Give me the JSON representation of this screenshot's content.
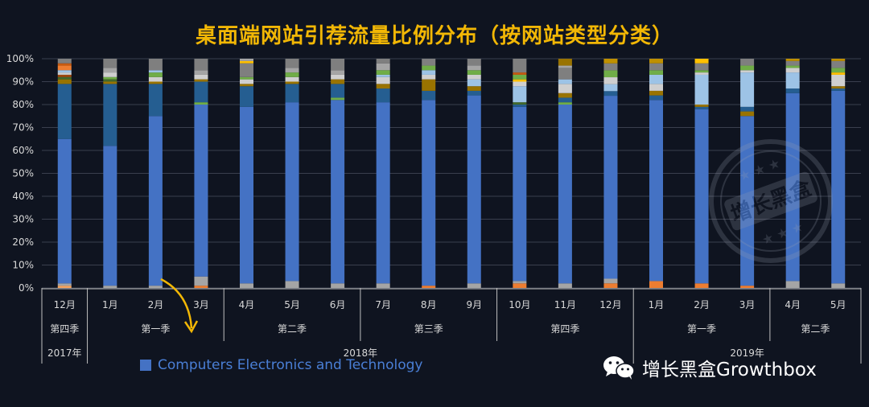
{
  "title": "桌面端网站引荐流量比例分布（按网站类型分类）",
  "legend_label": "Computers Electronics and Technology",
  "brand": {
    "text": "增长黑盒Growthbox",
    "stamp_text": "增长黑盒"
  },
  "colors": {
    "primary": "#4472c4",
    "title": "#f2b705",
    "arrow": "#f2b705",
    "background": "#0f1420"
  },
  "chart_data": {
    "type": "bar",
    "stacked": true,
    "normalized_percent": true,
    "title": "桌面端网站引荐流量比例分布（按网站类型分类）",
    "ylim": [
      0,
      100
    ],
    "yticks": [
      "0%",
      "10%",
      "20%",
      "30%",
      "40%",
      "50%",
      "60%",
      "70%",
      "80%",
      "90%",
      "100%"
    ],
    "grid": true,
    "legend_position": "bottom-left",
    "categories": [
      "12月",
      "1月",
      "2月",
      "3月",
      "4月",
      "5月",
      "6月",
      "7月",
      "8月",
      "9月",
      "10月",
      "11月",
      "12月",
      "1月",
      "2月",
      "3月",
      "4月",
      "5月"
    ],
    "x_groups_season": [
      {
        "label": "第四季",
        "span": 1
      },
      {
        "label": "第一季",
        "span": 3
      },
      {
        "label": "第二季",
        "span": 3
      },
      {
        "label": "第三季",
        "span": 3
      },
      {
        "label": "第四季",
        "span": 3
      },
      {
        "label": "第一季",
        "span": 3
      },
      {
        "label": "第二季",
        "span": 2
      }
    ],
    "x_groups_year": [
      {
        "label": "2017年",
        "span": 1
      },
      {
        "label": "2018年",
        "span": 12
      },
      {
        "label": "2019年",
        "span": 5
      }
    ],
    "highlight_series": "Computers Electronics and Technology",
    "stacks": [
      [
        {
          "v": 1,
          "c": "#f4a460"
        },
        {
          "v": 1,
          "c": "#a5a5a5"
        },
        {
          "v": 63,
          "c": "#4472c4"
        },
        {
          "v": 24,
          "c": "#255e91"
        },
        {
          "v": 2,
          "c": "#997300"
        },
        {
          "v": 1,
          "c": "#43682b"
        },
        {
          "v": 1,
          "c": "#9e480e"
        },
        {
          "v": 1,
          "c": "#cfcfcf"
        },
        {
          "v": 1,
          "c": "#9dc3e6"
        },
        {
          "v": 2,
          "c": "#ed7d31"
        },
        {
          "v": 1,
          "c": "#c55a11"
        },
        {
          "v": 2,
          "c": "#7f7f7f"
        }
      ],
      [
        {
          "v": 1,
          "c": "#a5a5a5"
        },
        {
          "v": 61,
          "c": "#4472c4"
        },
        {
          "v": 27,
          "c": "#255e91"
        },
        {
          "v": 1,
          "c": "#997300"
        },
        {
          "v": 1,
          "c": "#43682b"
        },
        {
          "v": 1,
          "c": "#70ad47"
        },
        {
          "v": 2,
          "c": "#cfcfcf"
        },
        {
          "v": 2,
          "c": "#a5a5a5"
        },
        {
          "v": 4,
          "c": "#7f7f7f"
        }
      ],
      [
        {
          "v": 1,
          "c": "#a5a5a5"
        },
        {
          "v": 74,
          "c": "#4472c4"
        },
        {
          "v": 14,
          "c": "#255e91"
        },
        {
          "v": 1,
          "c": "#997300"
        },
        {
          "v": 2,
          "c": "#cfcfcf"
        },
        {
          "v": 2,
          "c": "#70ad47"
        },
        {
          "v": 1,
          "c": "#9dc3e6"
        },
        {
          "v": 5,
          "c": "#7f7f7f"
        }
      ],
      [
        {
          "v": 1,
          "c": "#ed7d31"
        },
        {
          "v": 4,
          "c": "#a5a5a5"
        },
        {
          "v": 75,
          "c": "#4472c4"
        },
        {
          "v": 1,
          "c": "#70ad47"
        },
        {
          "v": 9,
          "c": "#255e91"
        },
        {
          "v": 1,
          "c": "#997300"
        },
        {
          "v": 2,
          "c": "#cfcfcf"
        },
        {
          "v": 2,
          "c": "#a5a5a5"
        },
        {
          "v": 5,
          "c": "#7f7f7f"
        }
      ],
      [
        {
          "v": 2,
          "c": "#a5a5a5"
        },
        {
          "v": 77,
          "c": "#4472c4"
        },
        {
          "v": 9,
          "c": "#255e91"
        },
        {
          "v": 1,
          "c": "#997300"
        },
        {
          "v": 2,
          "c": "#cfcfcf"
        },
        {
          "v": 1,
          "c": "#70ad47"
        },
        {
          "v": 6,
          "c": "#7f7f7f"
        },
        {
          "v": 1,
          "c": "#ffc000"
        },
        {
          "v": 1,
          "c": "#a5a5a5"
        }
      ],
      [
        {
          "v": 3,
          "c": "#a5a5a5"
        },
        {
          "v": 78,
          "c": "#4472c4"
        },
        {
          "v": 8,
          "c": "#255e91"
        },
        {
          "v": 1,
          "c": "#997300"
        },
        {
          "v": 2,
          "c": "#cfcfcf"
        },
        {
          "v": 2,
          "c": "#70ad47"
        },
        {
          "v": 2,
          "c": "#a5a5a5"
        },
        {
          "v": 4,
          "c": "#7f7f7f"
        }
      ],
      [
        {
          "v": 2,
          "c": "#a5a5a5"
        },
        {
          "v": 80,
          "c": "#4472c4"
        },
        {
          "v": 1,
          "c": "#70ad47"
        },
        {
          "v": 6,
          "c": "#255e91"
        },
        {
          "v": 2,
          "c": "#997300"
        },
        {
          "v": 2,
          "c": "#cfcfcf"
        },
        {
          "v": 2,
          "c": "#a5a5a5"
        },
        {
          "v": 5,
          "c": "#7f7f7f"
        }
      ],
      [
        {
          "v": 2,
          "c": "#a5a5a5"
        },
        {
          "v": 79,
          "c": "#4472c4"
        },
        {
          "v": 6,
          "c": "#255e91"
        },
        {
          "v": 2,
          "c": "#997300"
        },
        {
          "v": 3,
          "c": "#cfcfcf"
        },
        {
          "v": 1,
          "c": "#9dc3e6"
        },
        {
          "v": 2,
          "c": "#70ad47"
        },
        {
          "v": 3,
          "c": "#a5a5a5"
        },
        {
          "v": 2,
          "c": "#7f7f7f"
        }
      ],
      [
        {
          "v": 1,
          "c": "#ed7d31"
        },
        {
          "v": 81,
          "c": "#4472c4"
        },
        {
          "v": 4,
          "c": "#255e91"
        },
        {
          "v": 5,
          "c": "#997300"
        },
        {
          "v": 2,
          "c": "#cfcfcf"
        },
        {
          "v": 2,
          "c": "#9dc3e6"
        },
        {
          "v": 2,
          "c": "#70ad47"
        },
        {
          "v": 3,
          "c": "#7f7f7f"
        }
      ],
      [
        {
          "v": 2,
          "c": "#a5a5a5"
        },
        {
          "v": 82,
          "c": "#4472c4"
        },
        {
          "v": 2,
          "c": "#255e91"
        },
        {
          "v": 2,
          "c": "#997300"
        },
        {
          "v": 3,
          "c": "#9dc3e6"
        },
        {
          "v": 2,
          "c": "#cfcfcf"
        },
        {
          "v": 2,
          "c": "#70ad47"
        },
        {
          "v": 2,
          "c": "#a5a5a5"
        },
        {
          "v": 3,
          "c": "#7f7f7f"
        }
      ],
      [
        {
          "v": 2,
          "c": "#ed7d31"
        },
        {
          "v": 1,
          "c": "#a5a5a5"
        },
        {
          "v": 76,
          "c": "#4472c4"
        },
        {
          "v": 1,
          "c": "#255e91"
        },
        {
          "v": 1,
          "c": "#43682b"
        },
        {
          "v": 7,
          "c": "#9dc3e6"
        },
        {
          "v": 2,
          "c": "#cfcfcf"
        },
        {
          "v": 1,
          "c": "#ffc000"
        },
        {
          "v": 2,
          "c": "#70ad47"
        },
        {
          "v": 1,
          "c": "#c55a11"
        },
        {
          "v": 6,
          "c": "#7f7f7f"
        }
      ],
      [
        {
          "v": 2,
          "c": "#a5a5a5"
        },
        {
          "v": 78,
          "c": "#4472c4"
        },
        {
          "v": 1,
          "c": "#70ad47"
        },
        {
          "v": 2,
          "c": "#255e91"
        },
        {
          "v": 2,
          "c": "#997300"
        },
        {
          "v": 4,
          "c": "#cfcfcf"
        },
        {
          "v": 2,
          "c": "#9dc3e6"
        },
        {
          "v": 5,
          "c": "#7f7f7f"
        },
        {
          "v": 1,
          "c": "#a5a5a5"
        },
        {
          "v": 3,
          "c": "#997300"
        }
      ],
      [
        {
          "v": 2,
          "c": "#ed7d31"
        },
        {
          "v": 2,
          "c": "#a5a5a5"
        },
        {
          "v": 79,
          "c": "#4472c4"
        },
        {
          "v": 2,
          "c": "#255e91"
        },
        {
          "v": 3,
          "c": "#9dc3e6"
        },
        {
          "v": 3,
          "c": "#cfcfcf"
        },
        {
          "v": 3,
          "c": "#70ad47"
        },
        {
          "v": 3,
          "c": "#7f7f7f"
        },
        {
          "v": 2,
          "c": "#bf9000"
        }
      ],
      [
        {
          "v": 3,
          "c": "#ed7d31"
        },
        {
          "v": 79,
          "c": "#4472c4"
        },
        {
          "v": 2,
          "c": "#255e91"
        },
        {
          "v": 2,
          "c": "#997300"
        },
        {
          "v": 3,
          "c": "#cfcfcf"
        },
        {
          "v": 4,
          "c": "#9dc3e6"
        },
        {
          "v": 2,
          "c": "#70ad47"
        },
        {
          "v": 3,
          "c": "#7f7f7f"
        },
        {
          "v": 2,
          "c": "#bf9000"
        }
      ],
      [
        {
          "v": 2,
          "c": "#ed7d31"
        },
        {
          "v": 76,
          "c": "#4472c4"
        },
        {
          "v": 1,
          "c": "#255e91"
        },
        {
          "v": 1,
          "c": "#997300"
        },
        {
          "v": 13,
          "c": "#9dc3e6"
        },
        {
          "v": 1,
          "c": "#cfcfcf"
        },
        {
          "v": 1,
          "c": "#70ad47"
        },
        {
          "v": 3,
          "c": "#7f7f7f"
        },
        {
          "v": 2,
          "c": "#ffc000"
        }
      ],
      [
        {
          "v": 1,
          "c": "#ed7d31"
        },
        {
          "v": 74,
          "c": "#4472c4"
        },
        {
          "v": 2,
          "c": "#997300"
        },
        {
          "v": 2,
          "c": "#255e91"
        },
        {
          "v": 15,
          "c": "#9dc3e6"
        },
        {
          "v": 1,
          "c": "#cfcfcf"
        },
        {
          "v": 2,
          "c": "#70ad47"
        },
        {
          "v": 3,
          "c": "#7f7f7f"
        }
      ],
      [
        {
          "v": 3,
          "c": "#a5a5a5"
        },
        {
          "v": 82,
          "c": "#4472c4"
        },
        {
          "v": 2,
          "c": "#255e91"
        },
        {
          "v": 7,
          "c": "#9dc3e6"
        },
        {
          "v": 2,
          "c": "#cfcfcf"
        },
        {
          "v": 1,
          "c": "#70ad47"
        },
        {
          "v": 2,
          "c": "#7f7f7f"
        },
        {
          "v": 1,
          "c": "#bf9000"
        }
      ],
      [
        {
          "v": 2,
          "c": "#a5a5a5"
        },
        {
          "v": 84,
          "c": "#4472c4"
        },
        {
          "v": 1,
          "c": "#255e91"
        },
        {
          "v": 1,
          "c": "#997300"
        },
        {
          "v": 5,
          "c": "#cfcfcf"
        },
        {
          "v": 1,
          "c": "#ffc000"
        },
        {
          "v": 2,
          "c": "#70ad47"
        },
        {
          "v": 3,
          "c": "#7f7f7f"
        },
        {
          "v": 1,
          "c": "#bf9000"
        }
      ]
    ]
  }
}
